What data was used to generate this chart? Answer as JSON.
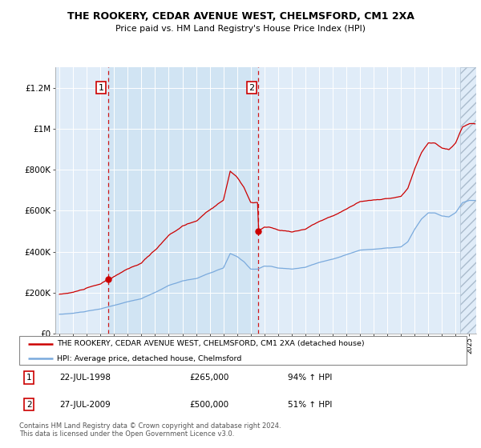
{
  "title": "THE ROOKERY, CEDAR AVENUE WEST, CHELMSFORD, CM1 2XA",
  "subtitle": "Price paid vs. HM Land Registry's House Price Index (HPI)",
  "legend_line1": "THE ROOKERY, CEDAR AVENUE WEST, CHELMSFORD, CM1 2XA (detached house)",
  "legend_line2": "HPI: Average price, detached house, Chelmsford",
  "annotation1_date": "22-JUL-1998",
  "annotation1_price": "£265,000",
  "annotation1_hpi": "94% ↑ HPI",
  "annotation2_date": "27-JUL-2009",
  "annotation2_price": "£500,000",
  "annotation2_hpi": "51% ↑ HPI",
  "purchase1_year": 1998.55,
  "purchase1_price": 265000,
  "purchase2_year": 2009.57,
  "purchase2_price": 500000,
  "footer": "Contains HM Land Registry data © Crown copyright and database right 2024.\nThis data is licensed under the Open Government Licence v3.0.",
  "hpi_color": "#7aaadd",
  "price_color": "#cc0000",
  "bg_color": "#e0ecf8",
  "highlight_color": "#ccdff0",
  "ylim": [
    0,
    1300000
  ],
  "xlim_start": 1994.7,
  "xlim_end": 2025.5
}
